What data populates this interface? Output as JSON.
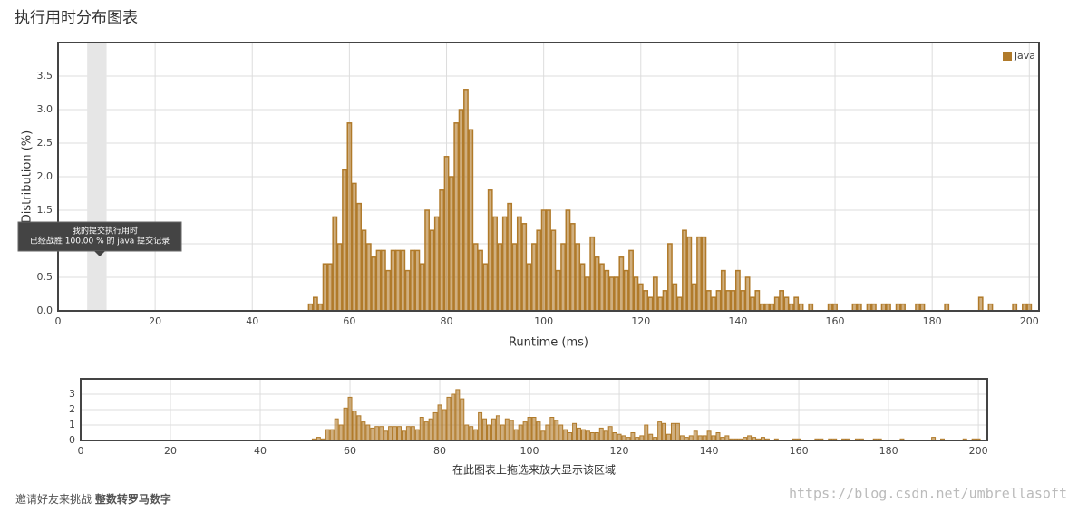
{
  "header": {
    "title": "执行用时分布图表"
  },
  "chart_data": {
    "type": "bar",
    "x_label": "Runtime (ms)",
    "y_label": "Distribution (%)",
    "x": [
      52,
      53,
      54,
      55,
      56,
      57,
      58,
      59,
      60,
      61,
      62,
      63,
      64,
      65,
      66,
      67,
      68,
      69,
      70,
      71,
      72,
      73,
      74,
      75,
      76,
      77,
      78,
      79,
      80,
      81,
      82,
      83,
      84,
      85,
      86,
      87,
      88,
      89,
      90,
      91,
      92,
      93,
      94,
      95,
      96,
      97,
      98,
      99,
      100,
      101,
      102,
      103,
      104,
      105,
      106,
      107,
      108,
      109,
      110,
      111,
      112,
      113,
      114,
      115,
      116,
      117,
      118,
      119,
      120,
      121,
      122,
      123,
      124,
      125,
      126,
      127,
      128,
      129,
      130,
      131,
      132,
      133,
      134,
      135,
      136,
      137,
      138,
      139,
      140,
      141,
      142,
      143,
      144,
      145,
      146,
      147,
      148,
      149,
      150,
      151,
      152,
      153,
      155,
      159,
      160,
      164,
      165,
      167,
      168,
      170,
      171,
      173,
      174,
      177,
      178,
      183,
      190,
      192,
      197,
      199,
      200
    ],
    "series": [
      {
        "name": "java",
        "color": "#b07a2a",
        "values": [
          0.1,
          0.2,
          0.1,
          0.7,
          0.7,
          1.4,
          1.0,
          2.1,
          2.8,
          1.9,
          1.6,
          1.2,
          1.0,
          0.8,
          0.9,
          0.9,
          0.6,
          0.9,
          0.9,
          0.9,
          0.6,
          0.9,
          0.9,
          0.7,
          1.5,
          1.2,
          1.4,
          1.8,
          2.3,
          2.0,
          2.8,
          3.0,
          3.3,
          2.7,
          1.0,
          0.9,
          0.7,
          1.8,
          1.4,
          1.0,
          1.4,
          1.6,
          1.0,
          1.4,
          1.3,
          0.7,
          1.0,
          1.2,
          1.5,
          1.5,
          1.2,
          0.6,
          1.0,
          1.5,
          1.3,
          1.0,
          0.7,
          0.5,
          1.1,
          0.8,
          0.7,
          0.6,
          0.5,
          0.5,
          0.8,
          0.6,
          0.9,
          0.5,
          0.4,
          0.3,
          0.2,
          0.5,
          0.2,
          0.3,
          1.0,
          0.4,
          0.2,
          1.2,
          1.1,
          0.4,
          1.1,
          1.1,
          0.3,
          0.2,
          0.3,
          0.6,
          0.3,
          0.3,
          0.6,
          0.3,
          0.5,
          0.2,
          0.3,
          0.1,
          0.1,
          0.1,
          0.2,
          0.3,
          0.2,
          0.1,
          0.2,
          0.1,
          0.1,
          0.1,
          0.1,
          0.1,
          0.1,
          0.1,
          0.1,
          0.1,
          0.1,
          0.1,
          0.1,
          0.1,
          0.1,
          0.1,
          0.2,
          0.1,
          0.1,
          0.1,
          0.1
        ]
      }
    ],
    "xlim": [
      0,
      202
    ],
    "xticks": [
      0,
      20,
      40,
      60,
      80,
      100,
      120,
      140,
      160,
      180,
      200
    ],
    "ylim": [
      0,
      4
    ],
    "yticks": [
      {
        "value": 0,
        "label": "0.0"
      },
      0.5,
      {
        "value": 1,
        "label": "1.0"
      },
      1.5,
      {
        "value": 2,
        "label": "2.0"
      },
      2.5,
      {
        "value": 3,
        "label": "3.0"
      },
      3.5
    ],
    "grid": true,
    "legend": "upper right",
    "marker_range": [
      6,
      10
    ],
    "tooltip": [
      "我的提交执行用时",
      "已经战胜 100.00 % 的 java 提交记录"
    ],
    "navigator": {
      "label": "在此图表上拖选来放大显示该区域",
      "xlim": [
        0,
        202
      ],
      "xticks": [
        0,
        20,
        40,
        60,
        80,
        100,
        120,
        140,
        160,
        180,
        200
      ],
      "ylim": [
        0,
        4
      ],
      "yticks": [
        0,
        1,
        2,
        3
      ]
    }
  },
  "footer": {
    "invite": "邀请好友来挑战",
    "problem": "整数转罗马数字",
    "watermark": "https://blog.csdn.net/umbrellasoft"
  }
}
